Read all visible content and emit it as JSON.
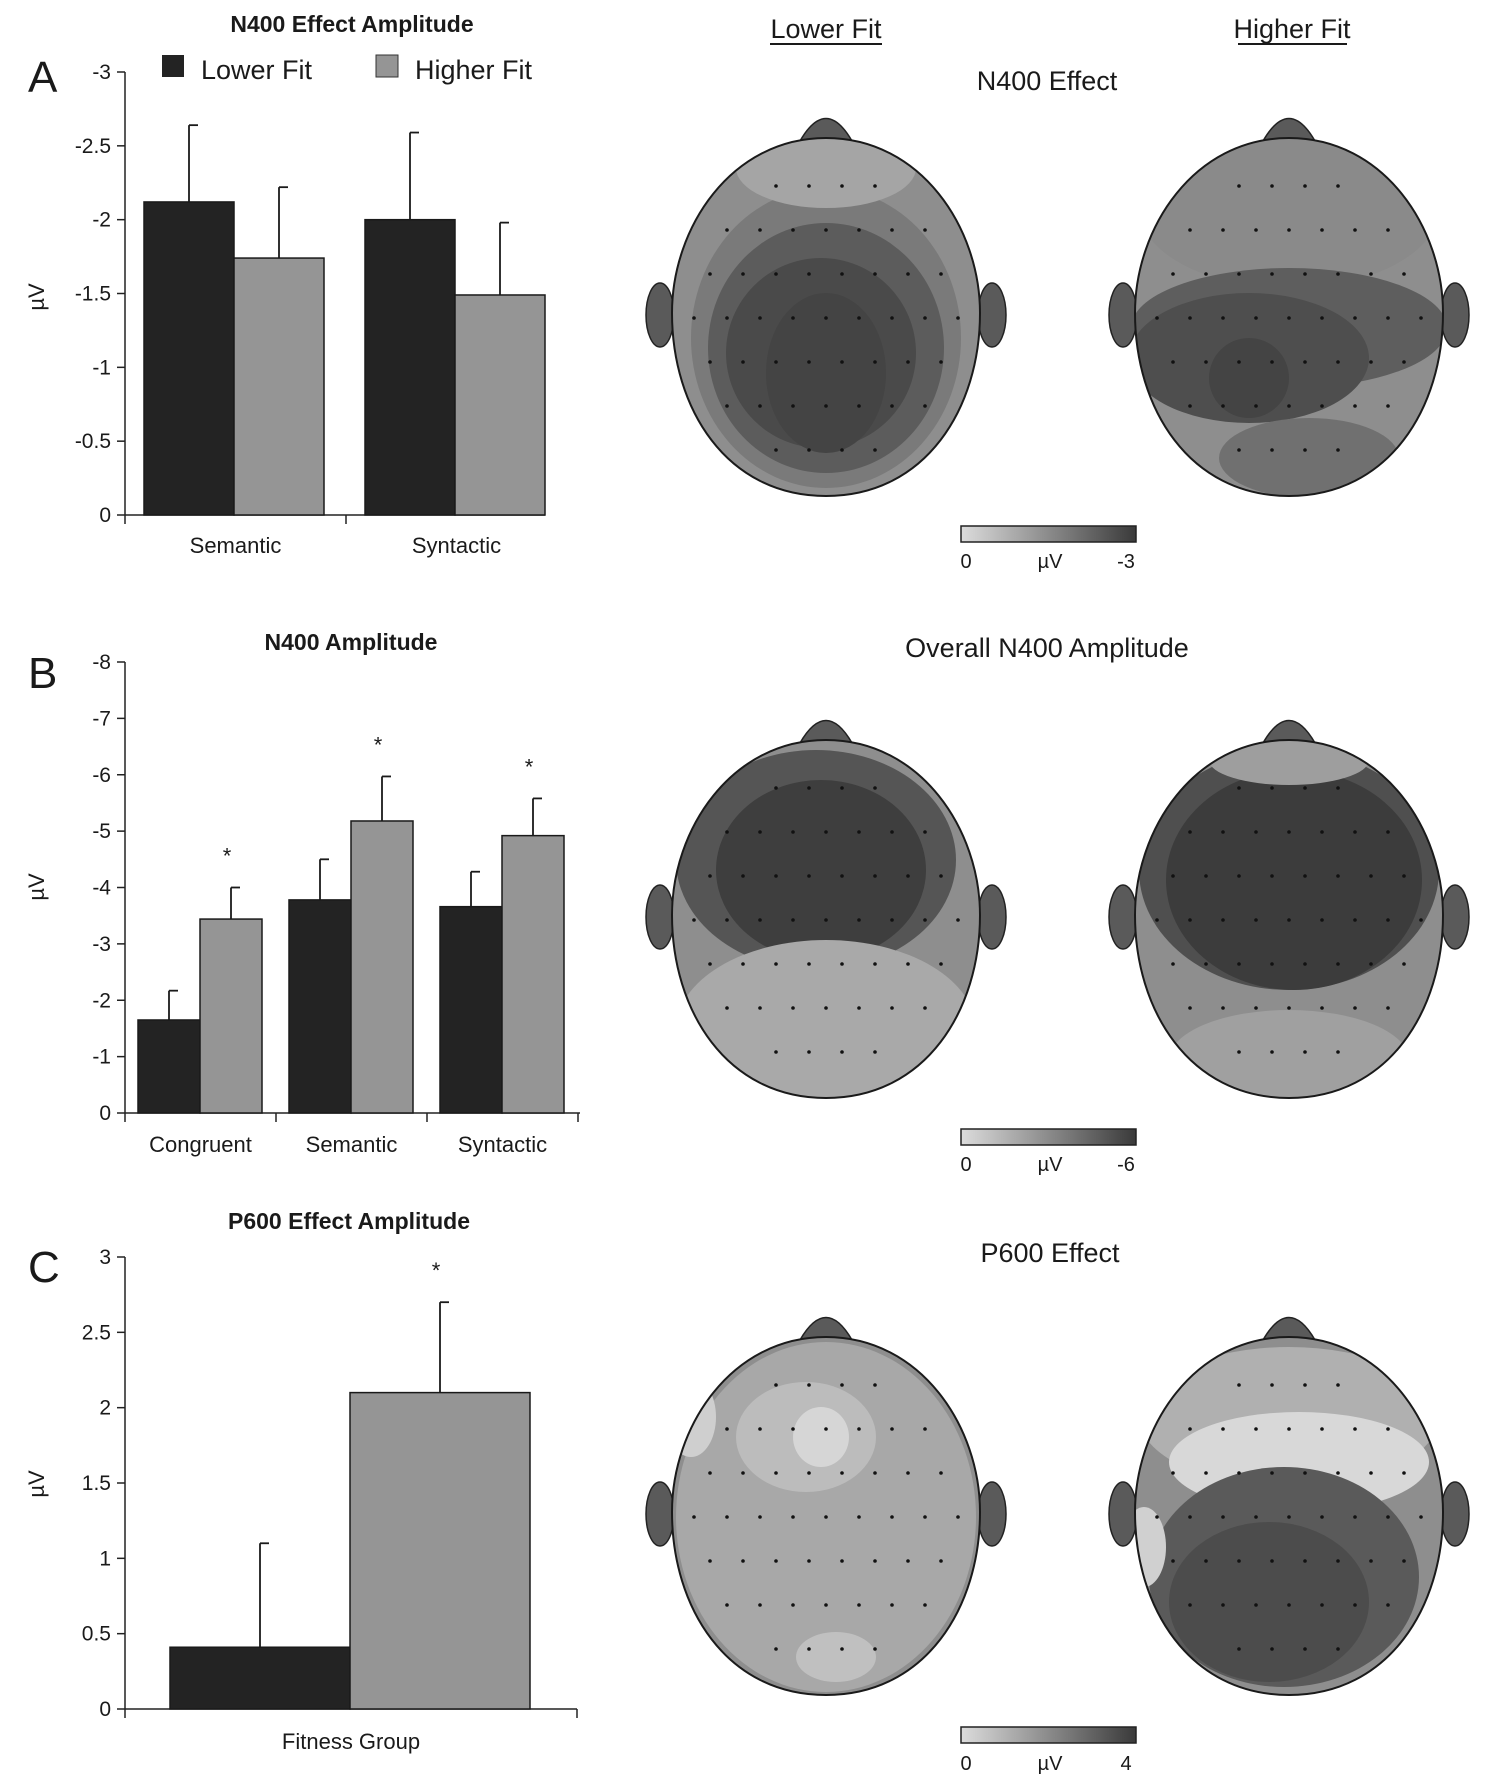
{
  "legend": {
    "lower": "Lower Fit",
    "higher": "Higher Fit"
  },
  "columns": {
    "lower": "Lower Fit",
    "higher": "Higher Fit"
  },
  "colors": {
    "lower": "#232323",
    "higher": "#959595",
    "scale_light": "#dcdcdc",
    "scale_dark": "#3a3a3a",
    "head": "#8e8e8e",
    "nose_ear": "#5a5a5a"
  },
  "chart_data": [
    {
      "panel": "A",
      "type": "bar",
      "title": "N400 Effect Amplitude",
      "ylabel": "µV",
      "ylim": [
        0,
        -3
      ],
      "yticks": [
        "-3",
        "-2.5",
        "-2",
        "-1.5",
        "-1",
        "-0.5",
        "0"
      ],
      "categories": [
        "Semantic",
        "Syntactic"
      ],
      "series": [
        {
          "name": "Lower Fit",
          "values": [
            -2.12,
            -2.0
          ],
          "errors": [
            0.52,
            0.59
          ]
        },
        {
          "name": "Higher Fit",
          "values": [
            -1.74,
            -1.49
          ],
          "errors": [
            0.48,
            0.49
          ]
        }
      ],
      "annotations": []
    },
    {
      "panel": "B",
      "type": "bar",
      "title": "N400 Amplitude",
      "ylabel": "µV",
      "ylim": [
        0,
        -8
      ],
      "yticks": [
        "-8",
        "-7",
        "-6",
        "-5",
        "-4",
        "-3",
        "-2",
        "-1",
        "0"
      ],
      "categories": [
        "Congruent",
        "Semantic",
        "Syntactic"
      ],
      "series": [
        {
          "name": "Lower Fit",
          "values": [
            -1.65,
            -3.78,
            -3.66
          ],
          "errors": [
            0.52,
            0.72,
            0.62
          ]
        },
        {
          "name": "Higher Fit",
          "values": [
            -3.44,
            -5.18,
            -4.92
          ],
          "errors": [
            0.56,
            0.79,
            0.66
          ]
        }
      ],
      "annotations": [
        "*",
        "*",
        "*"
      ]
    },
    {
      "panel": "C",
      "type": "bar",
      "title": "P600 Effect Amplitude",
      "ylabel": "µV",
      "ylim": [
        0,
        3
      ],
      "yticks": [
        "3",
        "2.5",
        "2",
        "1.5",
        "1",
        "0.5",
        "0"
      ],
      "categories": [
        "Fitness Group"
      ],
      "series": [
        {
          "name": "Lower Fit",
          "values": [
            0.41
          ],
          "errors": [
            0.69
          ]
        },
        {
          "name": "Higher Fit",
          "values": [
            2.1
          ],
          "errors": [
            0.6
          ]
        }
      ],
      "annotations": [
        "*"
      ]
    }
  ],
  "maps": [
    {
      "panel": "A",
      "title": "N400 Effect",
      "scale_min": "0",
      "scale_unit": "µV",
      "scale_max": "-3"
    },
    {
      "panel": "B",
      "title": "Overall N400 Amplitude",
      "scale_min": "0",
      "scale_unit": "µV",
      "scale_max": "-6"
    },
    {
      "panel": "C",
      "title": "P600 Effect",
      "scale_min": "0",
      "scale_unit": "µV",
      "scale_max": "4"
    }
  ]
}
